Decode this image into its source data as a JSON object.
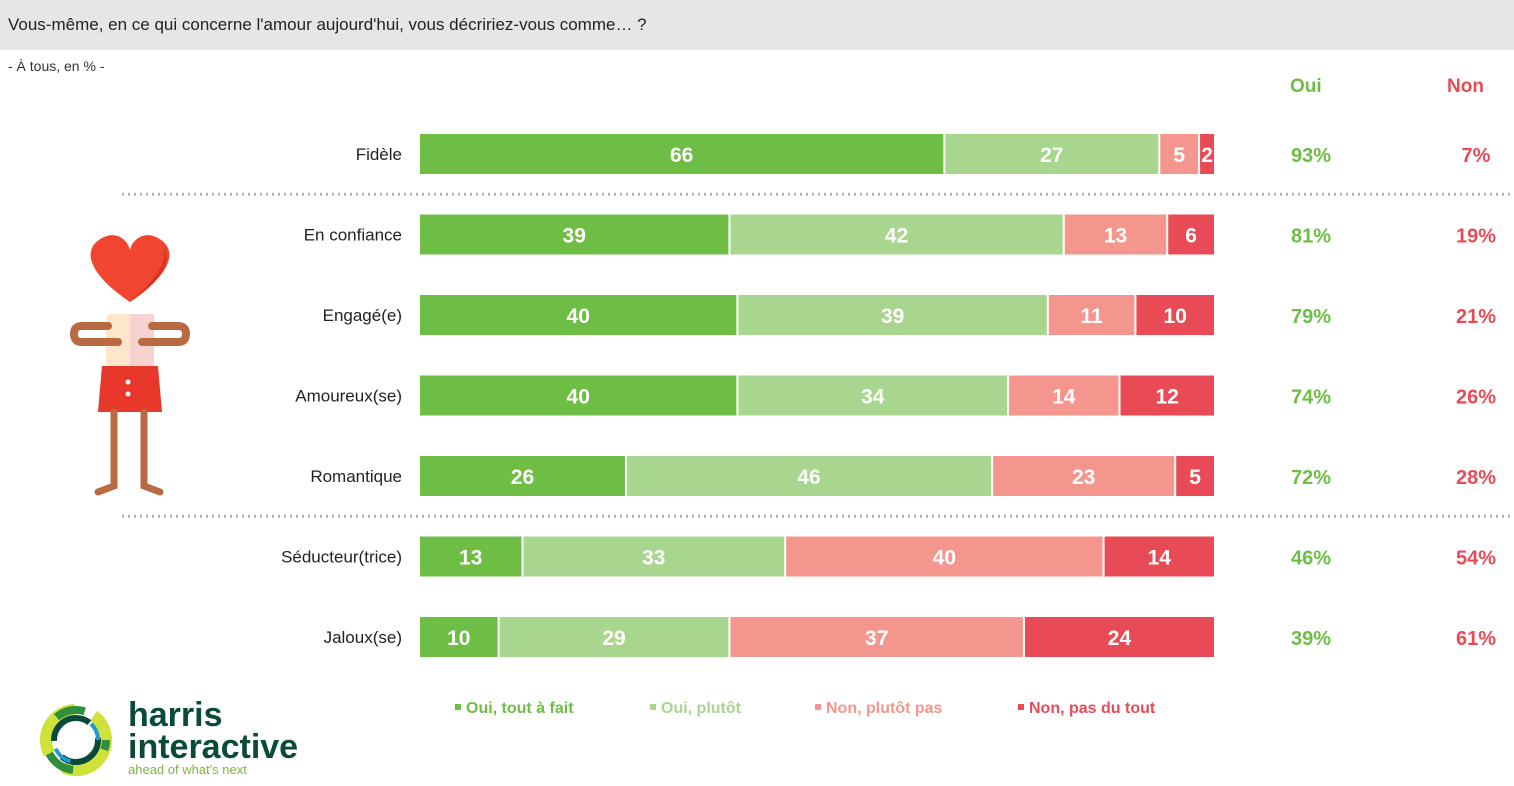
{
  "header": {
    "question": "Vous-même, en ce qui concerne l'amour aujourd'hui, vous décririez-vous comme… ?",
    "base": "- À tous, en % -"
  },
  "columns": {
    "oui": "Oui",
    "non": "Non"
  },
  "colors": {
    "oui_tout_a_fait": "#6ebd45",
    "oui_plutot": "#a8d68e",
    "non_plutot_pas": "#f4968d",
    "non_pas_du_tout": "#e84b56",
    "header_bg": "#e6e6e6"
  },
  "chart_data": {
    "type": "bar",
    "orientation": "horizontal",
    "stacked": true,
    "unit": "%",
    "categories": [
      "Fidèle",
      "En confiance",
      "Engagé(e)",
      "Amoureux(se)",
      "Romantique",
      "Séducteur(trice)",
      "Jaloux(se)"
    ],
    "series": [
      {
        "name": "Oui, tout à fait",
        "values": [
          66,
          39,
          40,
          40,
          26,
          13,
          10
        ]
      },
      {
        "name": "Oui, plutôt",
        "values": [
          27,
          42,
          39,
          34,
          46,
          33,
          29
        ]
      },
      {
        "name": "Non, plutôt pas",
        "values": [
          5,
          13,
          11,
          14,
          23,
          40,
          37
        ]
      },
      {
        "name": "Non, pas du tout",
        "values": [
          2,
          6,
          10,
          12,
          5,
          14,
          24
        ]
      }
    ],
    "totals_oui": [
      "93%",
      "81%",
      "79%",
      "74%",
      "72%",
      "46%",
      "39%"
    ],
    "totals_non": [
      "7%",
      "19%",
      "21%",
      "26%",
      "28%",
      "54%",
      "61%"
    ],
    "xlim": [
      0,
      100
    ],
    "groups": [
      [
        0
      ],
      [
        1,
        2,
        3,
        4
      ],
      [
        5,
        6
      ]
    ],
    "legend_position": "bottom"
  },
  "legend": [
    {
      "label": "Oui, tout à fait",
      "color": "#6ebd45"
    },
    {
      "label": "Oui, plutôt",
      "color": "#a8d68e"
    },
    {
      "label": "Non, plutôt pas",
      "color": "#f4968d"
    },
    {
      "label": "Non, pas du tout",
      "color": "#e84b56"
    }
  ],
  "logo": {
    "line1": "harris",
    "line2": "interactive",
    "tagline": "ahead of what's next"
  },
  "icons": {
    "figure": "heart-person-illustration",
    "logo": "harris-logo-icon"
  }
}
